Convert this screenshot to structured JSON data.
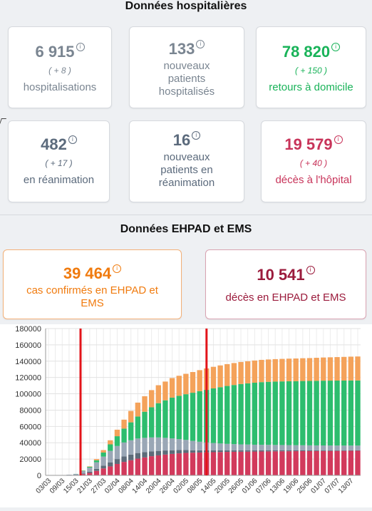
{
  "hospital": {
    "title": "Données hospitalières",
    "cards": [
      {
        "value": "6 915",
        "delta": "( + 8 )",
        "label": "hospitalisations"
      },
      {
        "value": "133",
        "label": "nouveaux patients hospitalisés"
      },
      {
        "value": "78 820",
        "delta": "( + 150 )",
        "label": "retours à domicile"
      },
      {
        "value": "482",
        "delta": "( + 17 )",
        "label": "en réanimation"
      },
      {
        "value": "16",
        "label": "nouveaux patients en réanimation"
      },
      {
        "value": "19 579",
        "delta": "( + 40 )",
        "label": "décès à l'hôpital"
      }
    ]
  },
  "ehpad": {
    "title": "Données EHPAD et EMS",
    "cards": [
      {
        "value": "39 464",
        "label": "cas confirmés en EHPAD et EMS"
      },
      {
        "value": "10 541",
        "label": "décès en EHPAD et EMS"
      }
    ]
  },
  "info_glyph": "i",
  "colors": {
    "grey": "#7a8591",
    "green": "#19b359",
    "red": "#c8345a",
    "orange": "#f07b0f",
    "maroon": "#9b1b3c"
  },
  "chart_data": {
    "type": "bar",
    "stacked": true,
    "ylim": [
      0,
      180000
    ],
    "yticks": [
      "0",
      "20000",
      "40000",
      "60000",
      "80000",
      "100000",
      "120000",
      "140000",
      "160000",
      "180000"
    ],
    "xticks": [
      "03/03",
      "09/03",
      "15/03",
      "21/03",
      "27/03",
      "02/04",
      "08/04",
      "14/04",
      "20/04",
      "26/04",
      "02/05",
      "08/05",
      "14/05",
      "20/05",
      "26/05",
      "01/06",
      "07/06",
      "13/06",
      "19/06",
      "25/06",
      "01/07",
      "07/07",
      "13/07"
    ],
    "markers": [
      "17/03",
      "11/05"
    ],
    "series_colors": [
      "#d23a5c",
      "#5d6b79",
      "#9aa7b6",
      "#2dbd6e",
      "#f4a25a"
    ],
    "x": [
      "03/03",
      "06/03",
      "09/03",
      "12/03",
      "15/03",
      "18/03",
      "21/03",
      "24/03",
      "27/03",
      "30/03",
      "02/04",
      "05/04",
      "08/04",
      "11/04",
      "14/04",
      "17/04",
      "20/04",
      "23/04",
      "26/04",
      "29/04",
      "02/05",
      "05/05",
      "08/05",
      "11/05",
      "14/05",
      "17/05",
      "20/05",
      "23/05",
      "26/05",
      "29/05",
      "01/06",
      "04/06",
      "07/06",
      "10/06",
      "13/06",
      "16/06",
      "19/06",
      "22/06",
      "25/06",
      "28/06",
      "01/07",
      "04/07",
      "07/07",
      "10/07",
      "13/07",
      "16/07"
    ],
    "series": [
      {
        "values": [
          0,
          0,
          100,
          200,
          400,
          1500,
          3000,
          5500,
          8500,
          11000,
          14000,
          16500,
          18500,
          20500,
          22000,
          23500,
          24500,
          25500,
          26300,
          27000,
          27500,
          27800,
          28000,
          28200,
          28400,
          28600,
          28800,
          28900,
          29000,
          29100,
          29200,
          29300,
          29400,
          29500,
          29550,
          29600,
          29650,
          29700,
          29750,
          29800,
          29850,
          29900,
          29950,
          30000,
          30100,
          30150
        ]
      },
      {
        "values": [
          0,
          0,
          0,
          100,
          300,
          800,
          1500,
          2500,
          3500,
          5000,
          6000,
          6800,
          7000,
          6900,
          6500,
          6000,
          5500,
          5000,
          4500,
          4000,
          3500,
          3000,
          2700,
          2400,
          2200,
          2000,
          1800,
          1700,
          1600,
          1500,
          1400,
          1300,
          1200,
          1100,
          1050,
          1000,
          950,
          900,
          850,
          800,
          750,
          700,
          650,
          600,
          550,
          500
        ]
      },
      {
        "values": [
          0,
          100,
          200,
          500,
          1000,
          3000,
          5000,
          8000,
          11000,
          14000,
          16000,
          17000,
          17500,
          17800,
          17500,
          17000,
          16500,
          15500,
          14500,
          13500,
          12500,
          11500,
          10500,
          9700,
          9000,
          8500,
          8000,
          7700,
          7400,
          7200,
          7000,
          6900,
          6800,
          6700,
          6600,
          6500,
          6400,
          6300,
          6200,
          6150,
          6100,
          6050,
          6000,
          5950,
          5900,
          5900
        ]
      },
      {
        "values": [
          0,
          0,
          0,
          0,
          100,
          500,
          1000,
          2500,
          5000,
          8000,
          12000,
          17000,
          22000,
          27000,
          32000,
          37000,
          42000,
          46000,
          50000,
          53000,
          56000,
          59000,
          62000,
          64500,
          67000,
          69000,
          71000,
          72500,
          74000,
          75000,
          76000,
          76800,
          77300,
          77700,
          78000,
          78300,
          78500,
          78800,
          79000,
          79200,
          79400,
          79500,
          79600,
          79700,
          79800,
          79800
        ]
      },
      {
        "values": [
          0,
          0,
          0,
          0,
          0,
          200,
          500,
          1500,
          3000,
          5000,
          8000,
          11000,
          14000,
          17000,
          19000,
          21000,
          22000,
          23000,
          24000,
          24600,
          25000,
          25400,
          25800,
          26300,
          26500,
          26700,
          26800,
          26900,
          27000,
          27100,
          27200,
          27300,
          27400,
          27500,
          27600,
          27700,
          27800,
          27900,
          28000,
          28200,
          28400,
          28600,
          28800,
          29000,
          29200,
          29400
        ]
      }
    ]
  }
}
